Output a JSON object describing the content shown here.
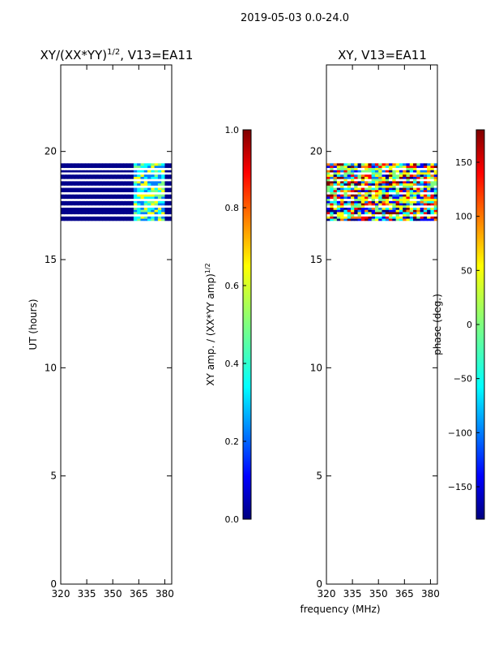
{
  "suptitle": "2019-05-03 0.0-24.0",
  "xlabel": "frequency (MHz)",
  "chart_data": [
    {
      "type": "heatmap",
      "title": "XY/(XX*YY)",
      "title_sup": "1/2",
      "title_suffix": ", V13=EA11",
      "ylabel": "UT (hours)",
      "xlim": [
        320,
        384
      ],
      "ylim": [
        0,
        24
      ],
      "xticks": [
        320,
        335,
        350,
        365,
        380
      ],
      "yticks": [
        0,
        5,
        10,
        15,
        20
      ],
      "data_rows_ut": [
        16.8,
        19.45
      ],
      "colorbar": {
        "label": "XY amp. / (XX*YY amp)",
        "label_sup": "1/2",
        "range": [
          0.0,
          1.0
        ],
        "ticks": [
          "0.0",
          "0.2",
          "0.4",
          "0.6",
          "0.8",
          "1.0"
        ],
        "colormap": "jet"
      }
    },
    {
      "type": "heatmap",
      "title": "XY, V13=EA11",
      "ylabel": "",
      "xlim": [
        320,
        384
      ],
      "ylim": [
        0,
        24
      ],
      "xticks": [
        320,
        335,
        350,
        365,
        380
      ],
      "yticks": [
        0,
        5,
        10,
        15,
        20
      ],
      "data_rows_ut": [
        16.8,
        19.45
      ],
      "colorbar": {
        "label": "phase (deg.)",
        "range": [
          -180,
          180
        ],
        "ticks": [
          "−150",
          "−100",
          "−50",
          "0",
          "50",
          "100",
          "150"
        ],
        "tick_values": [
          -150,
          -100,
          -50,
          0,
          50,
          100,
          150
        ],
        "colormap": "jet"
      }
    }
  ],
  "colors": {
    "jet_stops": [
      "#00007f",
      "#0000ff",
      "#007fff",
      "#00ffff",
      "#7fff7f",
      "#ffff00",
      "#ff7f00",
      "#ff0000",
      "#7f0000"
    ],
    "band_low": "#00008b",
    "background": "#ffffff"
  }
}
